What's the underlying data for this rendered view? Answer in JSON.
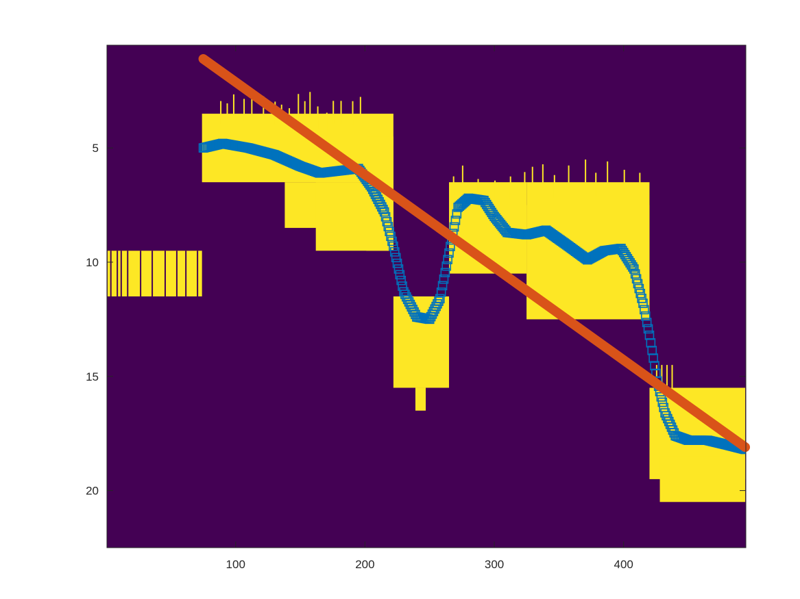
{
  "chart_data": {
    "type": "heatmap",
    "title": "",
    "xlabel": "",
    "ylabel": "",
    "xlim": [
      0.5,
      494.5
    ],
    "ylim": [
      0.5,
      22.5
    ],
    "y_reversed": true,
    "x_ticks": [
      100,
      200,
      300,
      400
    ],
    "y_ticks": [
      5,
      10,
      15,
      20
    ],
    "colors": {
      "background": "#440154",
      "foreground": "#FDE725",
      "smoothed_series": "#0072BD",
      "fit_line": "#D95319",
      "axes": "#262626"
    },
    "heatmap_blocks": [
      {
        "x": [
          1,
          74
        ],
        "y": [
          9.5,
          11.5
        ]
      },
      {
        "x": [
          74,
          222
        ],
        "y": [
          3.5,
          6.5
        ]
      },
      {
        "x": [
          138,
          210
        ],
        "y": [
          6.5,
          8.5
        ]
      },
      {
        "x": [
          162,
          222
        ],
        "y": [
          6.5,
          9.5
        ]
      },
      {
        "x": [
          201,
          222
        ],
        "y": [
          4.5,
          9.5
        ]
      },
      {
        "x": [
          222,
          265
        ],
        "y": [
          11.5,
          15.5
        ]
      },
      {
        "x": [
          239,
          247
        ],
        "y": [
          15.5,
          16.5
        ]
      },
      {
        "x": [
          265,
          325
        ],
        "y": [
          6.5,
          10.5
        ]
      },
      {
        "x": [
          325,
          420
        ],
        "y": [
          6.5,
          12.5
        ]
      },
      {
        "x": [
          325,
          420
        ],
        "y": [
          7.5,
          12.5
        ]
      },
      {
        "x": [
          420,
          494
        ],
        "y": [
          15.5,
          19.5
        ]
      },
      {
        "x": [
          428,
          494
        ],
        "y": [
          18.5,
          20.5
        ]
      }
    ],
    "series": [
      {
        "marker": "square",
        "x": [
          75,
          90,
          110,
          130,
          150,
          165,
          180,
          195,
          205,
          215,
          222,
          230,
          240,
          250,
          258,
          265,
          272,
          280,
          292,
          300,
          310,
          325,
          340,
          355,
          372,
          385,
          398,
          408,
          415,
          420,
          426,
          432,
          440,
          450,
          465,
          480,
          494
        ],
        "y": [
          5.0,
          4.8,
          5.0,
          5.3,
          5.8,
          6.1,
          6.0,
          5.9,
          6.7,
          7.8,
          9.3,
          11.3,
          12.4,
          12.5,
          11.6,
          9.6,
          7.6,
          7.2,
          7.3,
          8.0,
          8.7,
          8.8,
          8.6,
          9.2,
          9.9,
          9.5,
          9.4,
          10.3,
          11.8,
          13.2,
          15.2,
          16.6,
          17.6,
          17.8,
          17.8,
          18.0,
          18.2
        ]
      },
      {
        "type": "line",
        "x": [
          75,
          494
        ],
        "y": [
          1.1,
          18.1
        ]
      }
    ]
  }
}
